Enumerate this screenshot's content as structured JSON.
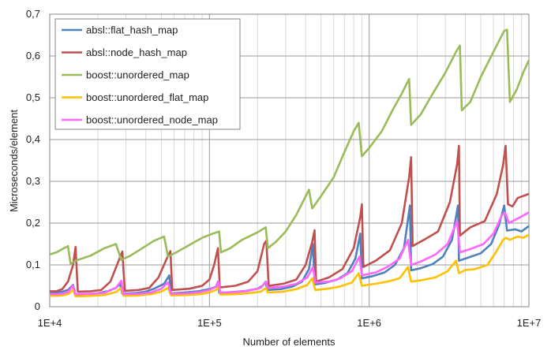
{
  "chart_data": {
    "type": "line",
    "title": "",
    "xlabel": "Number of elements",
    "ylabel": "Microseconds/element",
    "xscale": "log",
    "xlim": [
      10000,
      10000000
    ],
    "ylim": [
      0,
      0.7
    ],
    "grid": true,
    "legend_position": "top-left",
    "x_tick_labels": [
      "1E+4",
      "1E+5",
      "1E+6",
      "1E+7"
    ],
    "y_tick_labels": [
      "0",
      "0,1",
      "0,2",
      "0,3",
      "0,4",
      "0,5",
      "0,6",
      "0,7"
    ],
    "y_ticks": [
      0,
      0.1,
      0.2,
      0.3,
      0.4,
      0.5,
      0.6,
      0.7
    ],
    "series": [
      {
        "name": "absl::flat_hash_map",
        "color": "#4f81bd",
        "points": [
          [
            10000,
            0.035
          ],
          [
            11000,
            0.034
          ],
          [
            12000,
            0.036
          ],
          [
            13000,
            0.04
          ],
          [
            14000,
            0.052
          ],
          [
            14500,
            0.029
          ],
          [
            17000,
            0.03
          ],
          [
            20000,
            0.032
          ],
          [
            23000,
            0.037
          ],
          [
            26000,
            0.045
          ],
          [
            27500,
            0.055
          ],
          [
            28500,
            0.031
          ],
          [
            35000,
            0.033
          ],
          [
            40000,
            0.036
          ],
          [
            45000,
            0.043
          ],
          [
            52000,
            0.055
          ],
          [
            56000,
            0.075
          ],
          [
            57500,
            0.032
          ],
          [
            70000,
            0.034
          ],
          [
            85000,
            0.037
          ],
          [
            100000,
            0.042
          ],
          [
            110000,
            0.048
          ],
          [
            113000,
            0.06
          ],
          [
            115000,
            0.033
          ],
          [
            140000,
            0.035
          ],
          [
            170000,
            0.038
          ],
          [
            200000,
            0.043
          ],
          [
            215000,
            0.05
          ],
          [
            225000,
            0.06
          ],
          [
            230000,
            0.04
          ],
          [
            280000,
            0.042
          ],
          [
            330000,
            0.048
          ],
          [
            380000,
            0.06
          ],
          [
            420000,
            0.09
          ],
          [
            445000,
            0.15
          ],
          [
            455000,
            0.053
          ],
          [
            530000,
            0.057
          ],
          [
            630000,
            0.065
          ],
          [
            730000,
            0.08
          ],
          [
            820000,
            0.115
          ],
          [
            880000,
            0.175
          ],
          [
            900000,
            0.068
          ],
          [
            1050000,
            0.073
          ],
          [
            1250000,
            0.082
          ],
          [
            1450000,
            0.1
          ],
          [
            1650000,
            0.14
          ],
          [
            1800000,
            0.242
          ],
          [
            1830000,
            0.087
          ],
          [
            2100000,
            0.092
          ],
          [
            2500000,
            0.102
          ],
          [
            2900000,
            0.12
          ],
          [
            3300000,
            0.16
          ],
          [
            3600000,
            0.242
          ],
          [
            3650000,
            0.11
          ],
          [
            4200000,
            0.118
          ],
          [
            5000000,
            0.128
          ],
          [
            5800000,
            0.15
          ],
          [
            6500000,
            0.195
          ],
          [
            7000000,
            0.242
          ],
          [
            7300000,
            0.182
          ],
          [
            8200000,
            0.185
          ],
          [
            9000000,
            0.18
          ],
          [
            10000000,
            0.193
          ]
        ]
      },
      {
        "name": "absl::node_hash_map",
        "color": "#c0504d",
        "points": [
          [
            10000,
            0.037
          ],
          [
            11000,
            0.037
          ],
          [
            12000,
            0.042
          ],
          [
            13000,
            0.06
          ],
          [
            14000,
            0.1
          ],
          [
            14500,
            0.143
          ],
          [
            15000,
            0.036
          ],
          [
            18000,
            0.037
          ],
          [
            21000,
            0.04
          ],
          [
            24000,
            0.06
          ],
          [
            27000,
            0.11
          ],
          [
            28500,
            0.132
          ],
          [
            29500,
            0.038
          ],
          [
            36000,
            0.04
          ],
          [
            42000,
            0.045
          ],
          [
            48000,
            0.07
          ],
          [
            54000,
            0.115
          ],
          [
            57000,
            0.133
          ],
          [
            58500,
            0.04
          ],
          [
            75000,
            0.043
          ],
          [
            90000,
            0.05
          ],
          [
            100000,
            0.065
          ],
          [
            107000,
            0.1
          ],
          [
            113000,
            0.14
          ],
          [
            116000,
            0.046
          ],
          [
            145000,
            0.05
          ],
          [
            175000,
            0.06
          ],
          [
            200000,
            0.085
          ],
          [
            220000,
            0.15
          ],
          [
            227000,
            0.158
          ],
          [
            235000,
            0.05
          ],
          [
            290000,
            0.055
          ],
          [
            350000,
            0.065
          ],
          [
            400000,
            0.1
          ],
          [
            440000,
            0.155
          ],
          [
            455000,
            0.183
          ],
          [
            465000,
            0.06
          ],
          [
            560000,
            0.07
          ],
          [
            680000,
            0.09
          ],
          [
            800000,
            0.14
          ],
          [
            880000,
            0.215
          ],
          [
            900000,
            0.245
          ],
          [
            920000,
            0.095
          ],
          [
            1100000,
            0.11
          ],
          [
            1350000,
            0.135
          ],
          [
            1600000,
            0.2
          ],
          [
            1780000,
            0.31
          ],
          [
            1830000,
            0.358
          ],
          [
            1870000,
            0.145
          ],
          [
            2200000,
            0.16
          ],
          [
            2700000,
            0.18
          ],
          [
            3200000,
            0.25
          ],
          [
            3550000,
            0.34
          ],
          [
            3650000,
            0.385
          ],
          [
            3700000,
            0.17
          ],
          [
            4300000,
            0.19
          ],
          [
            5300000,
            0.205
          ],
          [
            6300000,
            0.27
          ],
          [
            6900000,
            0.34
          ],
          [
            7150000,
            0.385
          ],
          [
            7400000,
            0.245
          ],
          [
            7900000,
            0.24
          ],
          [
            8500000,
            0.26
          ],
          [
            10000000,
            0.27
          ]
        ]
      },
      {
        "name": "boost::unordered_map",
        "color": "#9bbb59",
        "points": [
          [
            10000,
            0.125
          ],
          [
            11000,
            0.13
          ],
          [
            12000,
            0.138
          ],
          [
            13000,
            0.145
          ],
          [
            13500,
            0.103
          ],
          [
            15000,
            0.112
          ],
          [
            18000,
            0.122
          ],
          [
            22000,
            0.14
          ],
          [
            26000,
            0.15
          ],
          [
            28000,
            0.112
          ],
          [
            32000,
            0.122
          ],
          [
            38000,
            0.14
          ],
          [
            45000,
            0.158
          ],
          [
            52000,
            0.168
          ],
          [
            55000,
            0.12
          ],
          [
            62000,
            0.13
          ],
          [
            75000,
            0.148
          ],
          [
            90000,
            0.165
          ],
          [
            105000,
            0.175
          ],
          [
            115000,
            0.18
          ],
          [
            118000,
            0.13
          ],
          [
            135000,
            0.14
          ],
          [
            160000,
            0.16
          ],
          [
            200000,
            0.178
          ],
          [
            225000,
            0.19
          ],
          [
            232000,
            0.14
          ],
          [
            260000,
            0.155
          ],
          [
            300000,
            0.18
          ],
          [
            350000,
            0.22
          ],
          [
            420000,
            0.28
          ],
          [
            440000,
            0.235
          ],
          [
            500000,
            0.265
          ],
          [
            600000,
            0.31
          ],
          [
            700000,
            0.37
          ],
          [
            800000,
            0.42
          ],
          [
            860000,
            0.44
          ],
          [
            900000,
            0.36
          ],
          [
            1000000,
            0.38
          ],
          [
            1200000,
            0.42
          ],
          [
            1400000,
            0.47
          ],
          [
            1600000,
            0.51
          ],
          [
            1780000,
            0.545
          ],
          [
            1830000,
            0.435
          ],
          [
            2100000,
            0.46
          ],
          [
            2500000,
            0.51
          ],
          [
            3000000,
            0.56
          ],
          [
            3500000,
            0.61
          ],
          [
            3700000,
            0.625
          ],
          [
            3800000,
            0.47
          ],
          [
            4300000,
            0.49
          ],
          [
            5000000,
            0.55
          ],
          [
            6000000,
            0.61
          ],
          [
            7000000,
            0.66
          ],
          [
            7300000,
            0.663
          ],
          [
            7600000,
            0.49
          ],
          [
            8400000,
            0.52
          ],
          [
            9200000,
            0.56
          ],
          [
            10000000,
            0.59
          ]
        ]
      },
      {
        "name": "boost::unordered_flat_map",
        "color": "#ffc000",
        "points": [
          [
            10000,
            0.026
          ],
          [
            11000,
            0.026
          ],
          [
            12000,
            0.027
          ],
          [
            13000,
            0.03
          ],
          [
            14000,
            0.04
          ],
          [
            14500,
            0.025
          ],
          [
            18000,
            0.026
          ],
          [
            22000,
            0.028
          ],
          [
            26000,
            0.035
          ],
          [
            28000,
            0.045
          ],
          [
            29000,
            0.026
          ],
          [
            36000,
            0.027
          ],
          [
            43000,
            0.03
          ],
          [
            50000,
            0.036
          ],
          [
            55000,
            0.045
          ],
          [
            57500,
            0.027
          ],
          [
            72000,
            0.028
          ],
          [
            88000,
            0.03
          ],
          [
            100000,
            0.034
          ],
          [
            110000,
            0.04
          ],
          [
            114000,
            0.048
          ],
          [
            117000,
            0.029
          ],
          [
            145000,
            0.03
          ],
          [
            175000,
            0.032
          ],
          [
            210000,
            0.036
          ],
          [
            226000,
            0.045
          ],
          [
            232000,
            0.034
          ],
          [
            290000,
            0.036
          ],
          [
            350000,
            0.042
          ],
          [
            410000,
            0.052
          ],
          [
            440000,
            0.068
          ],
          [
            460000,
            0.04
          ],
          [
            550000,
            0.043
          ],
          [
            650000,
            0.048
          ],
          [
            780000,
            0.058
          ],
          [
            860000,
            0.08
          ],
          [
            900000,
            0.05
          ],
          [
            1100000,
            0.055
          ],
          [
            1300000,
            0.06
          ],
          [
            1550000,
            0.068
          ],
          [
            1750000,
            0.095
          ],
          [
            1830000,
            0.06
          ],
          [
            2100000,
            0.063
          ],
          [
            2600000,
            0.07
          ],
          [
            3100000,
            0.085
          ],
          [
            3500000,
            0.11
          ],
          [
            3650000,
            0.08
          ],
          [
            4000000,
            0.088
          ],
          [
            4600000,
            0.09
          ],
          [
            5500000,
            0.1
          ],
          [
            6200000,
            0.13
          ],
          [
            6900000,
            0.16
          ],
          [
            7200000,
            0.165
          ],
          [
            7600000,
            0.16
          ],
          [
            8500000,
            0.168
          ],
          [
            9200000,
            0.165
          ],
          [
            10000000,
            0.172
          ]
        ]
      },
      {
        "name": "boost::unordered_node_map",
        "color": "#ff66ff",
        "points": [
          [
            10000,
            0.03
          ],
          [
            11000,
            0.03
          ],
          [
            12000,
            0.031
          ],
          [
            13000,
            0.035
          ],
          [
            14000,
            0.05
          ],
          [
            14500,
            0.03
          ],
          [
            18000,
            0.031
          ],
          [
            22000,
            0.033
          ],
          [
            26000,
            0.045
          ],
          [
            28000,
            0.062
          ],
          [
            29000,
            0.03
          ],
          [
            36000,
            0.031
          ],
          [
            43000,
            0.034
          ],
          [
            50000,
            0.043
          ],
          [
            55000,
            0.058
          ],
          [
            57500,
            0.031
          ],
          [
            72000,
            0.032
          ],
          [
            88000,
            0.035
          ],
          [
            100000,
            0.04
          ],
          [
            110000,
            0.048
          ],
          [
            114000,
            0.06
          ],
          [
            117000,
            0.034
          ],
          [
            145000,
            0.035
          ],
          [
            175000,
            0.038
          ],
          [
            210000,
            0.045
          ],
          [
            226000,
            0.06
          ],
          [
            232000,
            0.045
          ],
          [
            290000,
            0.048
          ],
          [
            350000,
            0.055
          ],
          [
            410000,
            0.07
          ],
          [
            445000,
            0.095
          ],
          [
            460000,
            0.058
          ],
          [
            560000,
            0.06
          ],
          [
            660000,
            0.068
          ],
          [
            780000,
            0.085
          ],
          [
            870000,
            0.12
          ],
          [
            900000,
            0.075
          ],
          [
            1100000,
            0.082
          ],
          [
            1300000,
            0.095
          ],
          [
            1550000,
            0.115
          ],
          [
            1750000,
            0.16
          ],
          [
            1830000,
            0.1
          ],
          [
            2100000,
            0.108
          ],
          [
            2600000,
            0.125
          ],
          [
            3100000,
            0.15
          ],
          [
            3550000,
            0.205
          ],
          [
            3700000,
            0.13
          ],
          [
            4300000,
            0.138
          ],
          [
            5200000,
            0.15
          ],
          [
            6000000,
            0.175
          ],
          [
            6800000,
            0.22
          ],
          [
            7100000,
            0.225
          ],
          [
            7500000,
            0.2
          ],
          [
            8400000,
            0.21
          ],
          [
            9200000,
            0.218
          ],
          [
            10000000,
            0.226
          ]
        ]
      }
    ]
  }
}
